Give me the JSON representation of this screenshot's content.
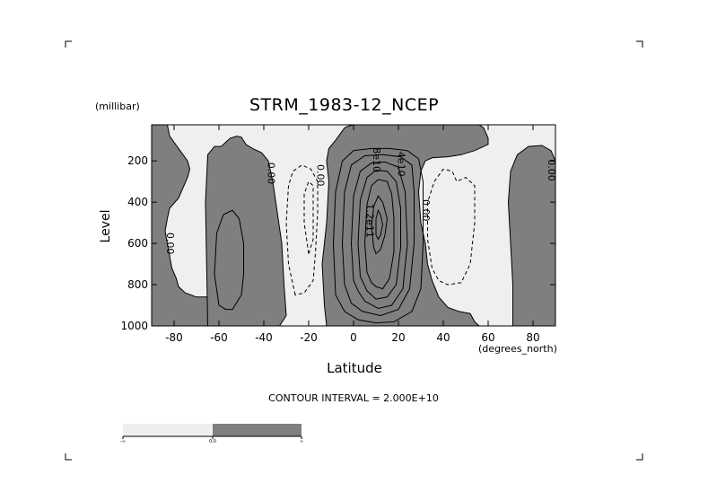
{
  "chart_data": {
    "type": "contour",
    "title": "STRM_1983-12_NCEP",
    "xlabel": "Latitude",
    "xunit": "(degrees_north)",
    "ylabel": "Level",
    "yunit": "(millibar)",
    "xlim": [
      -90,
      90
    ],
    "ylim": [
      1000,
      25
    ],
    "x_ticks": [
      -80,
      -60,
      -40,
      -20,
      0,
      20,
      40,
      60,
      80
    ],
    "y_ticks": [
      200,
      400,
      600,
      800,
      1000
    ],
    "x_tick_labels": [
      "-80",
      "-60",
      "-40",
      "-20",
      "0",
      "20",
      "40",
      "60",
      "80"
    ],
    "y_tick_labels": [
      "200",
      "400",
      "600",
      "800",
      "1000"
    ],
    "contour_interval_text": "CONTOUR INTERVAL = 2.000E+10",
    "contour_interval": 20000000000,
    "shading": {
      "negative_color": "#efefef",
      "positive_color": "#7f7f7f",
      "threshold": 0.0
    },
    "colorbar_labels": [
      "-∞",
      "0.0",
      "∞"
    ],
    "annotations": [
      {
        "text": "0.00",
        "x": -82,
        "y": 600
      },
      {
        "text": "0.00",
        "x": -37,
        "y": 260
      },
      {
        "text": "0.00",
        "x": -15,
        "y": 270
      },
      {
        "text": "8e10",
        "x": 10,
        "y": 195
      },
      {
        "text": "4e10",
        "x": 21,
        "y": 215
      },
      {
        "text": "1.2e11",
        "x": 7,
        "y": 490
      },
      {
        "text": "0.00",
        "x": 32,
        "y": 440
      },
      {
        "text": "0.00",
        "x": 88,
        "y": 245
      }
    ],
    "regions": [
      {
        "sign": "positive",
        "points": [
          [
            -90,
            25
          ],
          [
            -83,
            25
          ],
          [
            -82,
            80
          ],
          [
            -80,
            110
          ],
          [
            -78,
            140
          ],
          [
            -74,
            200
          ],
          [
            -73,
            240
          ],
          [
            -74,
            280
          ],
          [
            -76,
            330
          ],
          [
            -78,
            380
          ],
          [
            -82,
            430
          ],
          [
            -83,
            480
          ],
          [
            -84,
            540
          ],
          [
            -83,
            600
          ],
          [
            -82,
            660
          ],
          [
            -81,
            720
          ],
          [
            -79,
            770
          ],
          [
            -78,
            810
          ],
          [
            -75,
            840
          ],
          [
            -70,
            860
          ],
          [
            -64,
            860
          ],
          [
            -62,
            920
          ],
          [
            -60,
            980
          ],
          [
            -57,
            1000
          ],
          [
            -90,
            1000
          ]
        ]
      },
      {
        "sign": "positive",
        "points": [
          [
            -65,
            1000
          ],
          [
            -66,
            400
          ],
          [
            -65,
            170
          ],
          [
            -62,
            130
          ],
          [
            -59,
            130
          ],
          [
            -55,
            90
          ],
          [
            -52,
            80
          ],
          [
            -50,
            85
          ],
          [
            -48,
            120
          ],
          [
            -45,
            140
          ],
          [
            -41,
            160
          ],
          [
            -38,
            200
          ],
          [
            -36,
            300
          ],
          [
            -34,
            450
          ],
          [
            -32,
            600
          ],
          [
            -31,
            800
          ],
          [
            -30,
            950
          ],
          [
            -33,
            1000
          ]
        ]
      },
      {
        "sign": "positive",
        "points": [
          [
            -12,
            1000
          ],
          [
            -13,
            900
          ],
          [
            -14,
            700
          ],
          [
            -12,
            500
          ],
          [
            -11,
            300
          ],
          [
            -12,
            200
          ],
          [
            -11,
            140
          ],
          [
            -8,
            100
          ],
          [
            -4,
            40
          ],
          [
            -2,
            30
          ],
          [
            0,
            25
          ],
          [
            40,
            25
          ],
          [
            52,
            25
          ],
          [
            56,
            25
          ],
          [
            58,
            40
          ],
          [
            60,
            90
          ],
          [
            60,
            120
          ],
          [
            54,
            150
          ],
          [
            48,
            170
          ],
          [
            42,
            180
          ],
          [
            35,
            185
          ],
          [
            32,
            200
          ],
          [
            30,
            250
          ],
          [
            29,
            350
          ],
          [
            30,
            500
          ],
          [
            32,
            600
          ],
          [
            33,
            700
          ],
          [
            35,
            780
          ],
          [
            38,
            860
          ],
          [
            42,
            910
          ],
          [
            47,
            930
          ],
          [
            52,
            940
          ],
          [
            54,
            980
          ],
          [
            56,
            1000
          ]
        ]
      },
      {
        "sign": "positive",
        "points": [
          [
            90,
            1000
          ],
          [
            71,
            1000
          ],
          [
            71,
            800
          ],
          [
            70,
            600
          ],
          [
            69,
            400
          ],
          [
            70,
            250
          ],
          [
            73,
            170
          ],
          [
            78,
            130
          ],
          [
            84,
            125
          ],
          [
            88,
            150
          ],
          [
            90,
            200
          ]
        ]
      }
    ],
    "contours": [
      {
        "style": "solid",
        "closed": true,
        "points": [
          [
            -60,
            900
          ],
          [
            -62,
            750
          ],
          [
            -61,
            550
          ],
          [
            -58,
            460
          ],
          [
            -54,
            440
          ],
          [
            -51,
            480
          ],
          [
            -49,
            600
          ],
          [
            -49,
            750
          ],
          [
            -50,
            850
          ],
          [
            -54,
            920
          ],
          [
            -57,
            920
          ]
        ]
      },
      {
        "style": "dashed",
        "closed": true,
        "points": [
          [
            -26,
            850
          ],
          [
            -29,
            700
          ],
          [
            -30,
            500
          ],
          [
            -29,
            320
          ],
          [
            -27,
            250
          ],
          [
            -23,
            220
          ],
          [
            -19,
            240
          ],
          [
            -16,
            300
          ],
          [
            -16,
            450
          ],
          [
            -17,
            650
          ],
          [
            -18,
            780
          ],
          [
            -22,
            840
          ]
        ]
      },
      {
        "style": "dashed",
        "closed": true,
        "points": [
          [
            -20,
            650
          ],
          [
            -22,
            500
          ],
          [
            -22,
            360
          ],
          [
            -20,
            300
          ],
          [
            -18,
            320
          ],
          [
            -18,
            450
          ],
          [
            -18,
            580
          ]
        ]
      },
      {
        "style": "dashed",
        "closed": true,
        "points": [
          [
            35,
            720
          ],
          [
            33,
            580
          ],
          [
            33,
            400
          ],
          [
            36,
            300
          ],
          [
            40,
            240
          ],
          [
            44,
            250
          ],
          [
            46,
            300
          ],
          [
            50,
            280
          ],
          [
            54,
            320
          ],
          [
            54,
            500
          ],
          [
            52,
            700
          ],
          [
            48,
            790
          ],
          [
            42,
            800
          ],
          [
            38,
            780
          ]
        ]
      },
      {
        "style": "solid",
        "closed": true,
        "points": [
          [
            -8,
            850
          ],
          [
            -9,
            600
          ],
          [
            -8,
            350
          ],
          [
            -5,
            200
          ],
          [
            0,
            150
          ],
          [
            8,
            140
          ],
          [
            16,
            140
          ],
          [
            24,
            150
          ],
          [
            29,
            190
          ],
          [
            31,
            300
          ],
          [
            31,
            600
          ],
          [
            30,
            820
          ],
          [
            26,
            930
          ],
          [
            18,
            980
          ],
          [
            10,
            985
          ],
          [
            2,
            970
          ],
          [
            -4,
            930
          ]
        ]
      },
      {
        "style": "solid",
        "closed": true,
        "points": [
          [
            -4,
            800
          ],
          [
            -5,
            600
          ],
          [
            -4,
            350
          ],
          [
            -1,
            220
          ],
          [
            5,
            175
          ],
          [
            13,
            170
          ],
          [
            21,
            180
          ],
          [
            26,
            220
          ],
          [
            27,
            350
          ],
          [
            27,
            600
          ],
          [
            25,
            820
          ],
          [
            20,
            920
          ],
          [
            12,
            950
          ],
          [
            4,
            930
          ],
          [
            -1,
            890
          ]
        ]
      },
      {
        "style": "solid",
        "closed": true,
        "points": [
          [
            0,
            780
          ],
          [
            -1,
            600
          ],
          [
            0,
            370
          ],
          [
            3,
            250
          ],
          [
            8,
            210
          ],
          [
            14,
            205
          ],
          [
            20,
            230
          ],
          [
            23,
            350
          ],
          [
            24,
            600
          ],
          [
            22,
            820
          ],
          [
            17,
            900
          ],
          [
            11,
            915
          ],
          [
            5,
            880
          ],
          [
            2,
            830
          ]
        ]
      },
      {
        "style": "solid",
        "closed": true,
        "points": [
          [
            3,
            760
          ],
          [
            2,
            600
          ],
          [
            3,
            390
          ],
          [
            6,
            280
          ],
          [
            10,
            245
          ],
          [
            15,
            250
          ],
          [
            19,
            300
          ],
          [
            21,
            430
          ],
          [
            21,
            620
          ],
          [
            19,
            800
          ],
          [
            15,
            860
          ],
          [
            10,
            870
          ],
          [
            6,
            830
          ]
        ]
      },
      {
        "style": "solid",
        "closed": true,
        "points": [
          [
            6,
            740
          ],
          [
            5,
            600
          ],
          [
            6,
            410
          ],
          [
            8,
            320
          ],
          [
            11,
            290
          ],
          [
            15,
            300
          ],
          [
            17,
            360
          ],
          [
            18,
            480
          ],
          [
            18,
            640
          ],
          [
            16,
            770
          ],
          [
            13,
            820
          ],
          [
            10,
            810
          ],
          [
            8,
            790
          ]
        ]
      },
      {
        "style": "solid",
        "closed": true,
        "points": [
          [
            9,
            620
          ],
          [
            8,
            520
          ],
          [
            9,
            420
          ],
          [
            11,
            370
          ],
          [
            13,
            400
          ],
          [
            15,
            480
          ],
          [
            14,
            560
          ],
          [
            12,
            630
          ],
          [
            10,
            650
          ]
        ]
      },
      {
        "style": "solid",
        "closed": true,
        "points": [
          [
            10,
            560
          ],
          [
            10,
            480
          ],
          [
            11,
            440
          ],
          [
            12,
            460
          ],
          [
            13,
            510
          ],
          [
            12,
            560
          ],
          [
            11,
            580
          ]
        ]
      }
    ]
  }
}
